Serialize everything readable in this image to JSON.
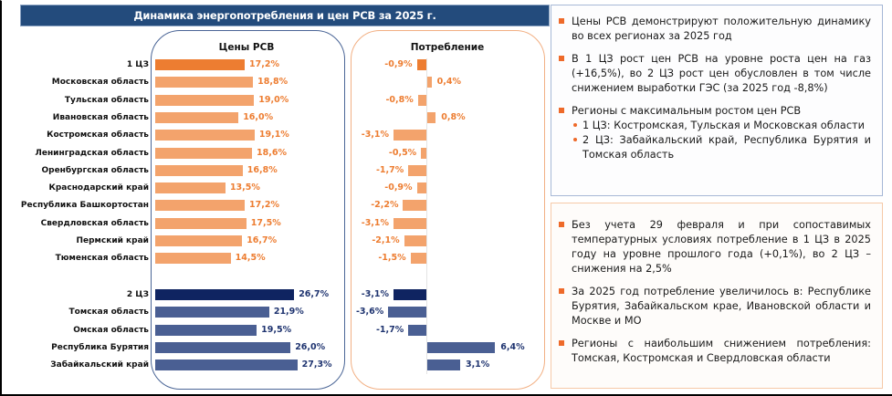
{
  "header": {
    "title": "Динамика энергопотребления и цен РСВ за 2025 г."
  },
  "colors": {
    "header_bg": "#234b7c",
    "zone1_total": "#ed7d31",
    "zone1_region": "#f3a36c",
    "zone1_label": "#ed7d31",
    "zone2_total": "#0f2461",
    "zone2_region": "#4a5f93",
    "zone2_label": "#1f3470",
    "bullet": "#ee6a2a"
  },
  "chart_data": [
    {
      "type": "bar",
      "orientation": "horizontal",
      "title": "Цены РСВ",
      "unit": "%",
      "categories": [
        "1 ЦЗ",
        "Московская область",
        "Тульская область",
        "Ивановская область",
        "Костромская область",
        "Ленинградская область",
        "Оренбургская область",
        "Краснодарский край",
        "Республика Башкортостан",
        "Свердловская область",
        "Пермский край",
        "Тюменская область",
        "2 ЦЗ",
        "Томская область",
        "Омская область",
        "Республика Бурятия",
        "Забайкальский край"
      ],
      "values": [
        17.2,
        18.8,
        19.0,
        16.0,
        19.1,
        18.6,
        16.8,
        13.5,
        17.2,
        17.5,
        16.7,
        14.5,
        26.7,
        21.9,
        19.5,
        26.0,
        27.3
      ],
      "labels": [
        "17,2%",
        "18,8%",
        "19,0%",
        "16,0%",
        "19,1%",
        "18,6%",
        "16,8%",
        "13,5%",
        "17,2%",
        "17,5%",
        "16,7%",
        "14,5%",
        "26,7%",
        "21,9%",
        "19,5%",
        "26,0%",
        "27,3%"
      ],
      "groups": [
        "total1",
        "z1",
        "z1",
        "z1",
        "z1",
        "z1",
        "z1",
        "z1",
        "z1",
        "z1",
        "z1",
        "z1",
        "total2",
        "z2",
        "z2",
        "z2",
        "z2"
      ]
    },
    {
      "type": "bar",
      "orientation": "horizontal",
      "title": "Потребление",
      "unit": "%",
      "categories": [
        "1 ЦЗ",
        "Московская область",
        "Тульская область",
        "Ивановская область",
        "Костромская область",
        "Ленинградская область",
        "Оренбургская область",
        "Краснодарский край",
        "Республика Башкортостан",
        "Свердловская область",
        "Пермский край",
        "Тюменская область",
        "2 ЦЗ",
        "Томская область",
        "Омская область",
        "Республика Бурятия",
        "Забайкальский край"
      ],
      "values": [
        -0.9,
        0.4,
        -0.8,
        0.8,
        -3.1,
        -0.5,
        -1.7,
        -0.9,
        -2.2,
        -3.1,
        -2.1,
        -1.5,
        -3.1,
        -3.6,
        -1.7,
        6.4,
        3.1
      ],
      "labels": [
        "-0,9%",
        "0,4%",
        "-0,8%",
        "0,8%",
        "-3,1%",
        "-0,5%",
        "-1,7%",
        "-0,9%",
        "-2,2%",
        "-3,1%",
        "-2,1%",
        "-1,5%",
        "-3,1%",
        "-3,6%",
        "-1,7%",
        "6,4%",
        "3,1%"
      ],
      "groups": [
        "total1",
        "z1",
        "z1",
        "z1",
        "z1",
        "z1",
        "z1",
        "z1",
        "z1",
        "z1",
        "z1",
        "z1",
        "total2",
        "z2",
        "z2",
        "z2",
        "z2"
      ]
    }
  ],
  "notes_top": {
    "items": [
      {
        "text": "Цены РСВ демонстрируют положительную динамику во всех регионах за 2025 год"
      },
      {
        "text": "В 1 ЦЗ рост цен РСВ на уровне роста цен на газ (+16,5%), во 2 ЦЗ рост цен обусловлен в том числе снижением выработки ГЭС (за 2025 год -8,8%)"
      },
      {
        "text": "Регионы с максимальным ростом цен РСВ",
        "sub": [
          "1 ЦЗ: Костромская, Тульская и Московская области",
          "2 ЦЗ: Забайкальский край, Республика Бурятия и Томская область"
        ]
      }
    ]
  },
  "notes_bottom": {
    "items": [
      {
        "text": "Без учета 29 февраля и при сопоставимых температурных условиях потребление в 1 ЦЗ в 2025 году на уровне прошлого года (+0,1%), во 2 ЦЗ – снижения на 2,5%"
      },
      {
        "text": "За 2025 год потребление увеличилось в: Республике Бурятия, Забайкальском крае, Ивановской области и Москве и МО"
      },
      {
        "text": "Регионы с наибольшим снижением потребления: Томская, Костромская и Свердловская области"
      }
    ]
  }
}
